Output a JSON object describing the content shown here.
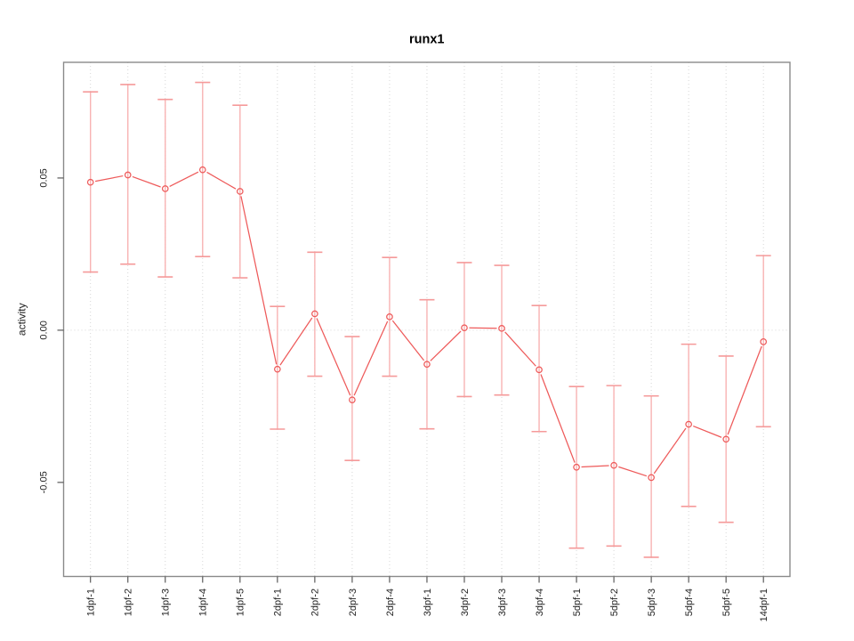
{
  "page": {
    "background": "#ffffff"
  },
  "chart_data": {
    "type": "line",
    "title": "runx1",
    "xlabel": "",
    "ylabel": "activity",
    "legend": "none",
    "categories": [
      "1dpf-1",
      "1dpf-2",
      "1dpf-3",
      "1dpf-4",
      "1dpf-5",
      "2dpf-1",
      "2dpf-2",
      "2dpf-3",
      "2dpf-4",
      "3dpf-1",
      "3dpf-2",
      "3dpf-3",
      "3dpf-4",
      "5dpf-1",
      "5dpf-2",
      "5dpf-3",
      "5dpf-4",
      "5dpf-5",
      "14dpf-1"
    ],
    "values": [
      0.0486,
      0.051,
      0.0465,
      0.0527,
      0.0456,
      -0.0128,
      0.0054,
      -0.0229,
      0.0044,
      -0.0112,
      0.0008,
      0.0006,
      -0.013,
      -0.045,
      -0.0444,
      -0.0484,
      -0.0309,
      -0.0358,
      -0.0038
    ],
    "error_low": [
      0.0191,
      0.0217,
      0.0175,
      0.0242,
      0.0172,
      -0.0325,
      -0.0151,
      -0.0428,
      -0.0151,
      -0.0324,
      -0.0218,
      -0.0213,
      -0.0333,
      -0.0716,
      -0.0709,
      -0.0746,
      -0.0579,
      -0.0631,
      -0.0317
    ],
    "error_high": [
      0.0783,
      0.0807,
      0.0758,
      0.0814,
      0.0739,
      0.0078,
      0.0256,
      -0.0021,
      0.0239,
      0.01,
      0.0222,
      0.0213,
      0.0081,
      -0.0185,
      -0.0182,
      -0.0216,
      -0.0046,
      -0.0085,
      0.0245
    ],
    "yticks": {
      "values": [
        0.05,
        0.0,
        -0.05
      ],
      "labels": [
        "0.05",
        "0.00",
        "-0.05"
      ]
    },
    "ylim": [
      -0.0809,
      0.088
    ],
    "grid": {
      "vertical_dotted_per_category": true,
      "horizontal_dotted_zero_line": true,
      "other_horizontal_gridlines": false
    },
    "point_style": "open-circle",
    "line_style": "segments-with-gaps-at-points",
    "colors": {
      "line": "#ee5a5a",
      "point": "#ee5a5a",
      "error_stem": "#f8b3b3",
      "error_cap": "#f59a9a",
      "grid": "#d6d6d6",
      "box": "#8a8a8a",
      "tick": "#5a5a5a",
      "text": "#1f1f1f",
      "title": "#000000"
    }
  }
}
